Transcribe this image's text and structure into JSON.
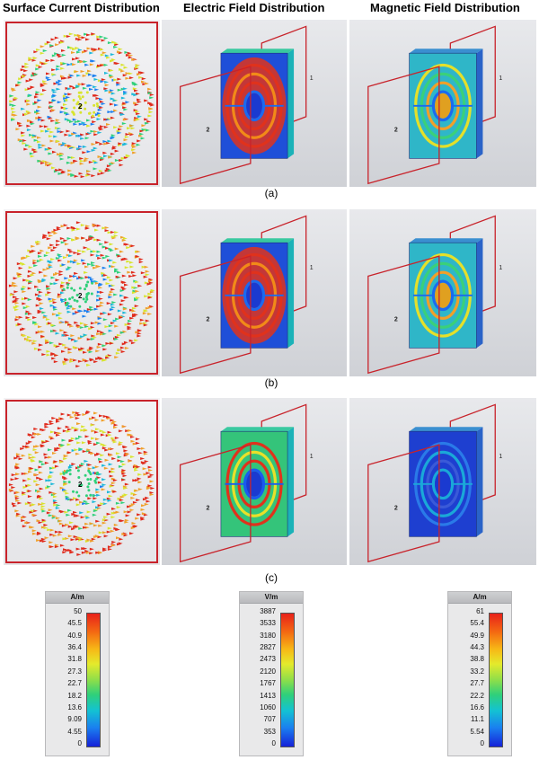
{
  "headers": {
    "surface_current": "Surface Current Distribution",
    "electric_field": "Electric Field Distribution",
    "magnetic_field": "Magnetic Field Distribution"
  },
  "rows": [
    {
      "label": "(a)"
    },
    {
      "label": "(b)"
    },
    {
      "label": "(c)"
    }
  ],
  "port_labels": {
    "port1": "1",
    "port2": "2"
  },
  "legends": [
    {
      "unit": "A/m",
      "ticks": [
        "50",
        "45.5",
        "40.9",
        "36.4",
        "31.8",
        "27.3",
        "22.7",
        "18.2",
        "13.6",
        "9.09",
        "4.55",
        "0"
      ]
    },
    {
      "unit": "V/m",
      "ticks": [
        "3887",
        "3533",
        "3180",
        "2827",
        "2473",
        "2120",
        "1767",
        "1413",
        "1060",
        "707",
        "353",
        "0"
      ]
    },
    {
      "unit": "A/m",
      "ticks": [
        "61",
        "55.4",
        "49.9",
        "44.3",
        "38.8",
        "33.2",
        "27.7",
        "22.2",
        "16.6",
        "11.1",
        "5.54",
        "0"
      ]
    }
  ],
  "colors": {
    "loop": "#c8232b",
    "hot": "#d9261c",
    "cool": "#1f3fd0",
    "mid": "#2fd07a"
  }
}
